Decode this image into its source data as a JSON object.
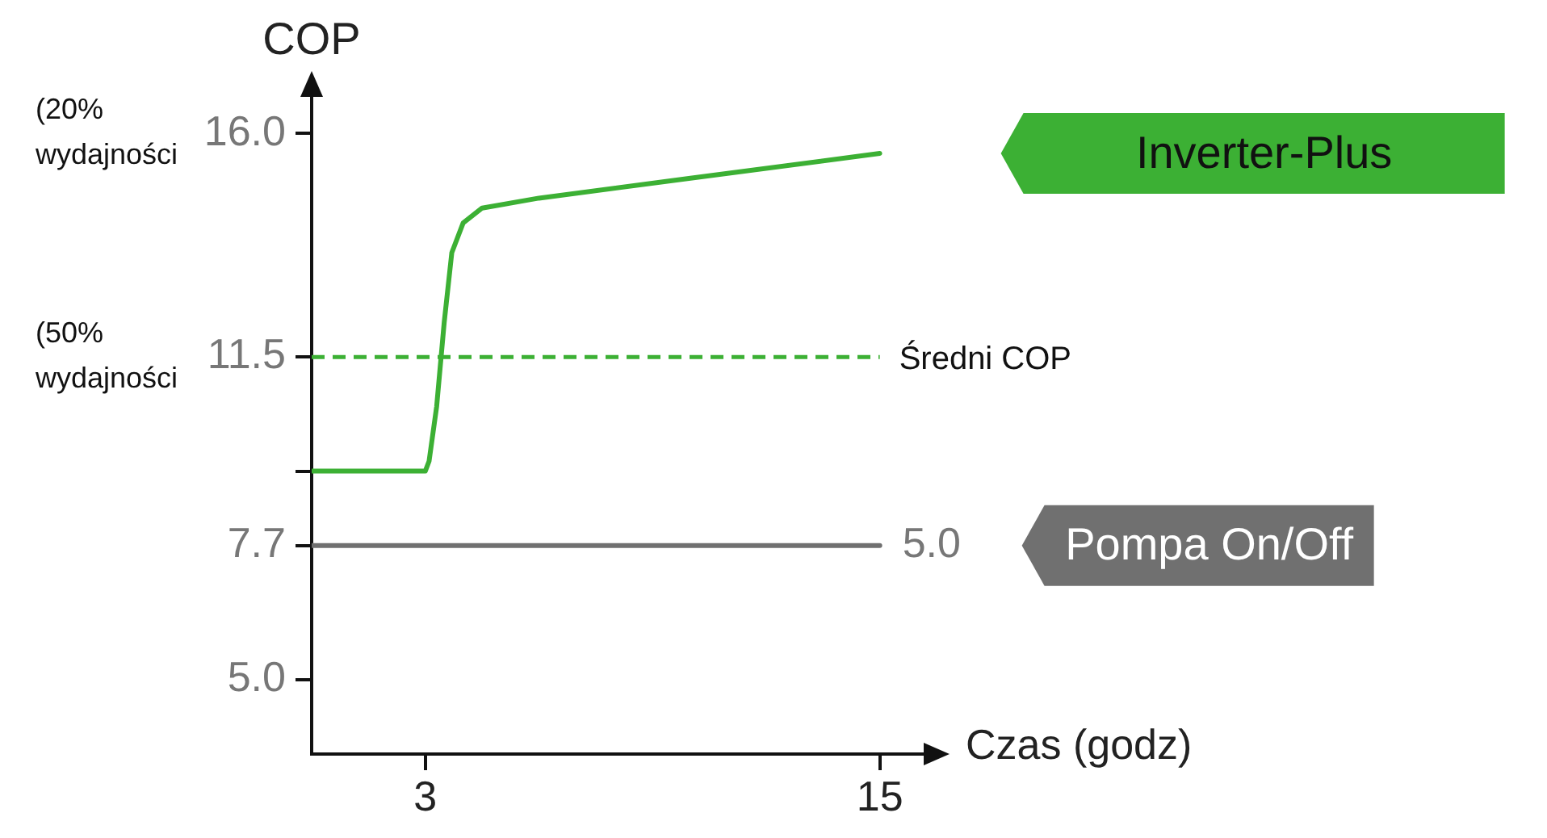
{
  "chart_data": {
    "type": "line",
    "ylabel": "COP",
    "xlabel": "Czas (godz)",
    "series": [
      {
        "name": "Inverter-Plus",
        "color": "#3cb034",
        "x": [
          0,
          3,
          3.1,
          3.3,
          3.5,
          3.7,
          4.0,
          4.5,
          6,
          10,
          15
        ],
        "values": [
          9.2,
          9.2,
          9.4,
          10.5,
          12.2,
          13.6,
          14.2,
          14.5,
          14.7,
          15.1,
          15.6
        ]
      },
      {
        "name": "Pompa On/Off",
        "color": "#707070",
        "x": [
          0,
          15
        ],
        "values": [
          7.7,
          7.7
        ]
      }
    ],
    "xlim": [
      0,
      16.5
    ],
    "ylim": [
      3.5,
      17
    ],
    "xticks": [
      3,
      15
    ],
    "yticks": [
      {
        "value": 16,
        "label": "16.0"
      },
      11.5,
      {
        "value": 9.2,
        "label": null
      },
      7.7,
      {
        "value": 5,
        "label": "5.0"
      }
    ],
    "ref_lines": [
      {
        "axis": "y",
        "value": 11.5,
        "label": "Średni COP",
        "color": "#3cb034",
        "line_style": "dashed"
      }
    ],
    "annotations": [
      "(20%\nwydajności",
      "(50%\nwydajności",
      {
        "text": "5.0",
        "x": 15,
        "y": 7.7
      }
    ],
    "line_style": "solid"
  }
}
